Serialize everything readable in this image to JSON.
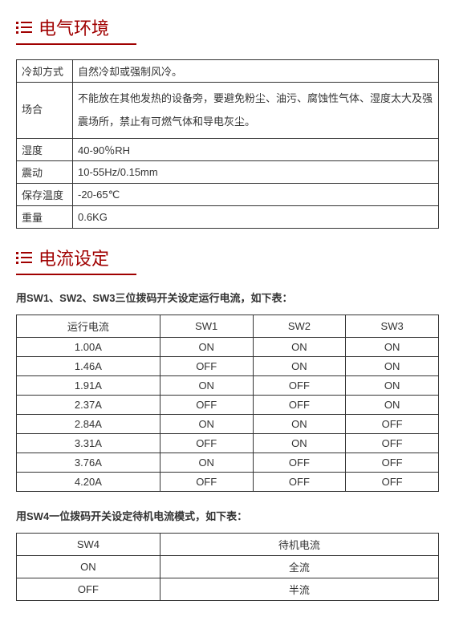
{
  "colors": {
    "accent": "#a00000",
    "text": "#333333",
    "border": "#333333",
    "background": "#ffffff"
  },
  "section1": {
    "title": "电气环境",
    "table": {
      "rows": [
        {
          "label": "冷却方式",
          "value": "自然冷却或强制风冷。",
          "tall": false
        },
        {
          "label": "场合",
          "value": "不能放在其他发热的设备旁，要避免粉尘、油污、腐蚀性气体、湿度太大及强震场所，禁止有可燃气体和导电灰尘。",
          "tall": true
        },
        {
          "label": "湿度",
          "value": "40-90％RH",
          "tall": false
        },
        {
          "label": "震动",
          "value": "10-55Hz/0.15mm",
          "tall": false
        },
        {
          "label": "保存温度",
          "value": "-20-65℃",
          "tall": false
        },
        {
          "label": "重量",
          "value": "0.6KG",
          "tall": false
        }
      ]
    }
  },
  "section2": {
    "title": "电流设定",
    "desc1": "用SW1、SW2、SW3三位拨码开关设定运行电流，如下表：",
    "table1": {
      "headers": [
        "运行电流",
        "SW1",
        "SW2",
        "SW3"
      ],
      "rows": [
        [
          "1.00A",
          "ON",
          "ON",
          "ON"
        ],
        [
          "1.46A",
          "OFF",
          "ON",
          "ON"
        ],
        [
          "1.91A",
          "ON",
          "OFF",
          "ON"
        ],
        [
          "2.37A",
          "OFF",
          "OFF",
          "ON"
        ],
        [
          "2.84A",
          "ON",
          "ON",
          "OFF"
        ],
        [
          "3.31A",
          "OFF",
          "ON",
          "OFF"
        ],
        [
          "3.76A",
          "ON",
          "OFF",
          "OFF"
        ],
        [
          "4.20A",
          "OFF",
          "OFF",
          "OFF"
        ]
      ]
    },
    "desc2": "用SW4一位拨码开关设定待机电流模式，如下表：",
    "table2": {
      "headers": [
        "SW4",
        "待机电流"
      ],
      "rows": [
        [
          "ON",
          "全流"
        ],
        [
          "OFF",
          "半流"
        ]
      ]
    }
  }
}
